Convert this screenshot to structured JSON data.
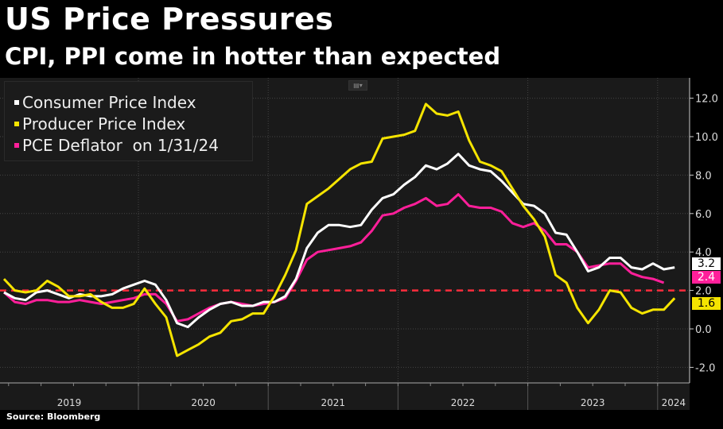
{
  "header": {
    "title": "US Price Pressures",
    "subtitle": "CPI, PPI come in hotter than expected"
  },
  "footer": {
    "source": "Source: Bloomberg"
  },
  "chart_data": {
    "type": "line",
    "title": "US Price Pressures",
    "subtitle": "CPI, PPI come in hotter than expected",
    "x_start": "2018-12",
    "x_frequency": "monthly",
    "x_tick_labels": [
      "2019",
      "2020",
      "2021",
      "2022",
      "2023",
      "2024"
    ],
    "ylim": [
      -3,
      13
    ],
    "y_ticks": [
      "12.0",
      "10.0",
      "8.0",
      "6.0",
      "4.0",
      "2.0",
      "0.0",
      "-2.0"
    ],
    "y_tick_values": [
      12,
      10,
      8,
      6,
      4,
      2,
      0,
      -2
    ],
    "y_axis_side": "right",
    "grid": true,
    "legend_placement": "top-left",
    "reference_line": {
      "value": 2.0,
      "color": "#ff2d3c",
      "style": "dashed"
    },
    "series": [
      {
        "name": "Consumer Price Index",
        "color": "#ffffff",
        "last_label": "3.2",
        "values": [
          1.9,
          1.6,
          1.5,
          1.9,
          2.0,
          1.8,
          1.6,
          1.8,
          1.7,
          1.7,
          1.8,
          2.1,
          2.3,
          2.5,
          2.3,
          1.5,
          0.3,
          0.1,
          0.6,
          1.0,
          1.3,
          1.4,
          1.2,
          1.2,
          1.4,
          1.4,
          1.7,
          2.6,
          4.2,
          5.0,
          5.4,
          5.4,
          5.3,
          5.4,
          6.2,
          6.8,
          7.0,
          7.5,
          7.9,
          8.5,
          8.3,
          8.6,
          9.1,
          8.5,
          8.3,
          8.2,
          7.7,
          7.1,
          6.5,
          6.4,
          6.0,
          5.0,
          4.9,
          4.0,
          3.0,
          3.2,
          3.7,
          3.7,
          3.2,
          3.1,
          3.4,
          3.1,
          3.2
        ]
      },
      {
        "name": "Producer Price Index",
        "color": "#f5e400",
        "last_label": "1.6",
        "values": [
          2.6,
          2.0,
          1.9,
          2.0,
          2.5,
          2.2,
          1.7,
          1.7,
          1.8,
          1.4,
          1.1,
          1.1,
          1.3,
          2.1,
          1.3,
          0.6,
          -1.4,
          -1.1,
          -0.8,
          -0.4,
          -0.2,
          0.4,
          0.5,
          0.8,
          0.8,
          1.7,
          2.8,
          4.1,
          6.5,
          6.9,
          7.3,
          7.8,
          8.3,
          8.6,
          8.7,
          9.9,
          10.0,
          10.1,
          10.3,
          11.7,
          11.2,
          11.1,
          11.3,
          9.8,
          8.7,
          8.5,
          8.2,
          7.3,
          6.4,
          5.7,
          4.8,
          2.8,
          2.4,
          1.1,
          0.3,
          1.0,
          2.0,
          1.9,
          1.1,
          0.8,
          1.0,
          1.0,
          1.6
        ]
      },
      {
        "name": "PCE Deflator  on 1/31/24",
        "color": "#ff1f9a",
        "last_label": "2.4",
        "values": [
          1.9,
          1.4,
          1.3,
          1.5,
          1.5,
          1.4,
          1.4,
          1.5,
          1.4,
          1.3,
          1.4,
          1.5,
          1.6,
          1.8,
          1.8,
          1.3,
          0.4,
          0.5,
          0.8,
          1.1,
          1.3,
          1.4,
          1.3,
          1.2,
          1.3,
          1.4,
          1.6,
          2.5,
          3.6,
          4.0,
          4.1,
          4.2,
          4.3,
          4.5,
          5.1,
          5.9,
          6.0,
          6.3,
          6.5,
          6.8,
          6.4,
          6.5,
          7.0,
          6.4,
          6.3,
          6.3,
          6.1,
          5.5,
          5.3,
          5.5,
          5.1,
          4.4,
          4.4,
          4.0,
          3.2,
          3.3,
          3.4,
          3.4,
          2.9,
          2.7,
          2.6,
          2.4
        ]
      }
    ]
  }
}
